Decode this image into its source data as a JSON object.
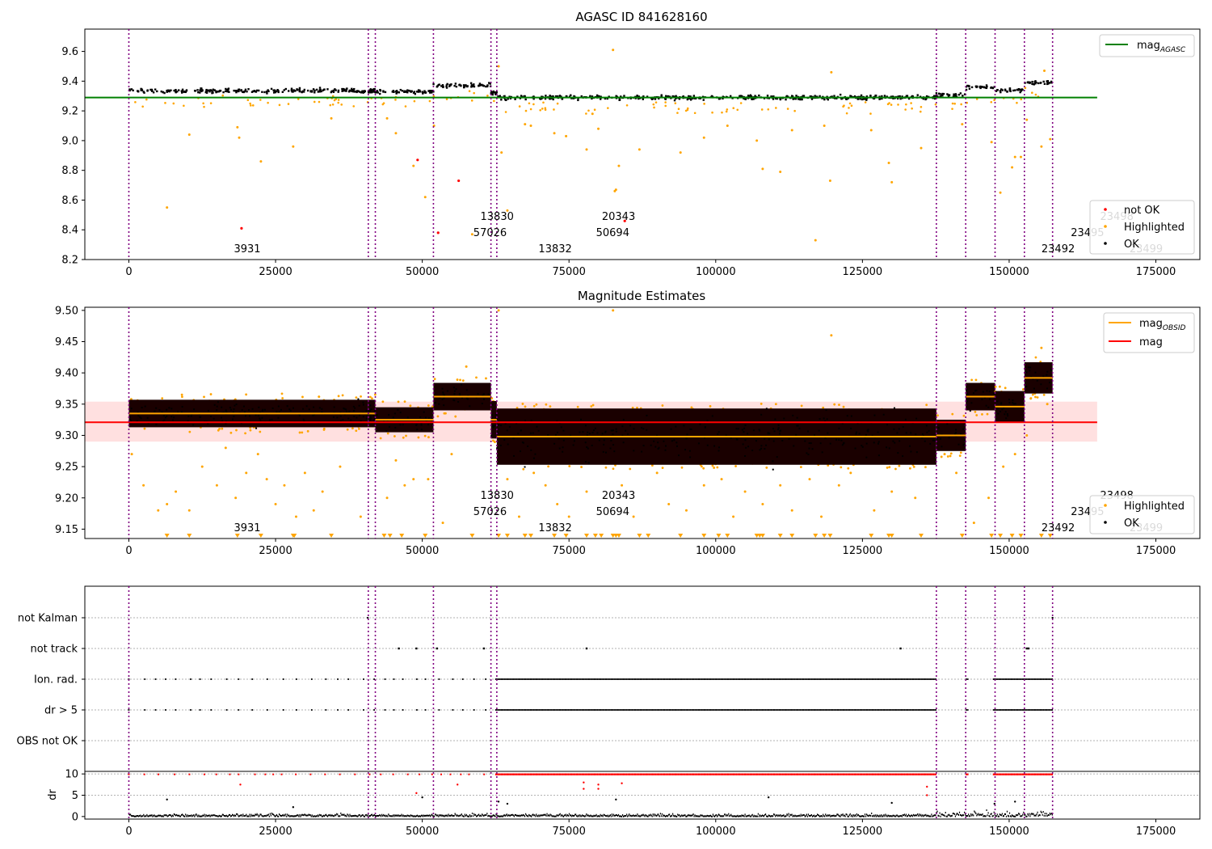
{
  "x_axis": {
    "xlim": [
      -7500,
      182500
    ],
    "ticks": [
      0,
      25000,
      50000,
      75000,
      100000,
      125000,
      150000,
      175000
    ],
    "tick_labels": [
      "0",
      "25000",
      "50000",
      "75000",
      "100000",
      "125000",
      "150000",
      "175000"
    ]
  },
  "observations": [
    {
      "obsid": "3931",
      "start": 0,
      "end": 40800,
      "label_row": 2
    },
    {
      "obsid": "57026",
      "start": 40800,
      "end": 42000,
      "label_row": 1
    },
    {
      "obsid": "13830",
      "start": 42000,
      "end": 51900,
      "label_row": 0
    },
    {
      "obsid": "13832",
      "start": 51900,
      "end": 61700,
      "label_row": 2
    },
    {
      "obsid": "50694",
      "start": 61700,
      "end": 62700,
      "label_row": 1
    },
    {
      "obsid": "20343",
      "start": 62700,
      "end": 137600,
      "label_row": 0
    },
    {
      "obsid": "23492",
      "start": 137600,
      "end": 142600,
      "label_row": 2
    },
    {
      "obsid": "23495",
      "start": 142600,
      "end": 147600,
      "label_row": 1
    },
    {
      "obsid": "23498",
      "start": 147600,
      "end": 152600,
      "label_row": 0
    },
    {
      "obsid": "23499",
      "start": 152600,
      "end": 157400,
      "label_row": 2
    }
  ],
  "chart_data": [
    {
      "type": "scatter",
      "title": "AGASC ID 841628160",
      "xlim": [
        -7500,
        182500
      ],
      "ylim": [
        8.2,
        9.75
      ],
      "yticks": [
        8.2,
        8.4,
        8.6,
        8.8,
        9.0,
        9.2,
        9.4,
        9.6
      ],
      "ytick_labels": [
        "8.2",
        "8.4",
        "8.6",
        "8.8",
        "9.0",
        "9.2",
        "9.4",
        "9.6"
      ],
      "legend_top": {
        "position": "upper right",
        "entries": [
          {
            "label": "mag",
            "subscript": "AGASC",
            "color": "#008000"
          }
        ]
      },
      "legend_bottom": {
        "position": "lower right",
        "entries": [
          {
            "label": "not OK",
            "color": "#ff0000"
          },
          {
            "label": "Highlighted",
            "color": "#ffa500"
          },
          {
            "label": "OK",
            "color": "#000000"
          }
        ]
      },
      "agasc_mag": 9.29,
      "agasc_line_x": [
        -7500,
        165000
      ],
      "ok_band_means": [
        9.335,
        9.335,
        9.33,
        9.37,
        9.32,
        9.29,
        9.305,
        9.36,
        9.34,
        9.39
      ],
      "not_ok_points": [
        [
          19200,
          8.41
        ],
        [
          49200,
          8.87
        ],
        [
          52700,
          8.38
        ],
        [
          56200,
          8.73
        ],
        [
          84500,
          8.46
        ]
      ],
      "highlighted_outliers": [
        [
          6500,
          8.55
        ],
        [
          10300,
          9.04
        ],
        [
          18500,
          9.09
        ],
        [
          18800,
          9.02
        ],
        [
          22500,
          8.86
        ],
        [
          28000,
          8.96
        ],
        [
          34500,
          9.15
        ],
        [
          44000,
          9.15
        ],
        [
          45500,
          9.05
        ],
        [
          48500,
          8.83
        ],
        [
          50500,
          8.62
        ],
        [
          52000,
          9.1
        ],
        [
          58500,
          8.37
        ],
        [
          63000,
          9.5
        ],
        [
          63500,
          8.92
        ],
        [
          64500,
          8.53
        ],
        [
          67500,
          9.11
        ],
        [
          68500,
          9.1
        ],
        [
          72500,
          9.05
        ],
        [
          74500,
          9.03
        ],
        [
          78000,
          8.94
        ],
        [
          79000,
          9.18
        ],
        [
          80000,
          9.08
        ],
        [
          82500,
          9.61
        ],
        [
          82800,
          8.66
        ],
        [
          83000,
          8.67
        ],
        [
          83500,
          8.83
        ],
        [
          87000,
          8.94
        ],
        [
          94000,
          8.92
        ],
        [
          98000,
          9.02
        ],
        [
          102000,
          9.1
        ],
        [
          107000,
          9.0
        ],
        [
          108000,
          8.81
        ],
        [
          111000,
          8.79
        ],
        [
          113000,
          9.07
        ],
        [
          117000,
          8.33
        ],
        [
          118500,
          9.1
        ],
        [
          119500,
          8.73
        ],
        [
          119700,
          9.46
        ],
        [
          126500,
          9.07
        ],
        [
          129500,
          8.85
        ],
        [
          130000,
          8.72
        ],
        [
          135000,
          8.95
        ],
        [
          142000,
          9.11
        ],
        [
          147000,
          8.99
        ],
        [
          148500,
          8.65
        ],
        [
          150500,
          8.82
        ],
        [
          152000,
          8.89
        ],
        [
          155500,
          8.96
        ],
        [
          156000,
          9.47
        ],
        [
          157000,
          9.01
        ],
        [
          151000,
          8.89
        ],
        [
          153000,
          9.14
        ]
      ]
    },
    {
      "type": "scatter",
      "title": "Magnitude Estimates",
      "xlim": [
        -7500,
        182500
      ],
      "ylim": [
        9.135,
        9.505
      ],
      "yticks": [
        9.15,
        9.2,
        9.25,
        9.3,
        9.35,
        9.4,
        9.45,
        9.5
      ],
      "ytick_labels": [
        "9.15",
        "9.20",
        "9.25",
        "9.30",
        "9.35",
        "9.40",
        "9.45",
        "9.50"
      ],
      "legend_top": {
        "position": "upper right",
        "entries": [
          {
            "label": "mag",
            "subscript": "OBSID",
            "color": "#ffa500"
          },
          {
            "label": "mag",
            "subscript": "",
            "color": "#ff0000"
          }
        ]
      },
      "legend_bottom": {
        "position": "lower right",
        "entries": [
          {
            "label": "Highlighted",
            "color": "#ffa500"
          },
          {
            "label": "OK",
            "color": "#000000"
          }
        ]
      },
      "mag": 9.321,
      "mag_band": [
        9.29,
        9.354
      ],
      "mag_line_x": [
        -7500,
        165000
      ],
      "mag_obsid": [
        9.335,
        9.335,
        9.325,
        9.362,
        9.325,
        9.298,
        9.3,
        9.362,
        9.346,
        9.392
      ],
      "obs_spread": [
        0.022,
        0.022,
        0.02,
        0.022,
        0.03,
        0.045,
        0.025,
        0.022,
        0.025,
        0.025
      ],
      "highlighted_outliers": [
        [
          500,
          9.27
        ],
        [
          2500,
          9.22
        ],
        [
          5000,
          9.18
        ],
        [
          6500,
          9.19
        ],
        [
          8000,
          9.21
        ],
        [
          10300,
          9.18
        ],
        [
          12500,
          9.25
        ],
        [
          15000,
          9.22
        ],
        [
          16500,
          9.28
        ],
        [
          18200,
          9.2
        ],
        [
          20000,
          9.24
        ],
        [
          22000,
          9.27
        ],
        [
          23500,
          9.23
        ],
        [
          25000,
          9.19
        ],
        [
          26500,
          9.22
        ],
        [
          28500,
          9.17
        ],
        [
          30000,
          9.24
        ],
        [
          31500,
          9.18
        ],
        [
          33000,
          9.21
        ],
        [
          36000,
          9.25
        ],
        [
          39500,
          9.17
        ],
        [
          44000,
          9.2
        ],
        [
          45500,
          9.26
        ],
        [
          47000,
          9.22
        ],
        [
          48500,
          9.23
        ],
        [
          51000,
          9.23
        ],
        [
          53500,
          9.16
        ],
        [
          55000,
          9.27
        ],
        [
          57500,
          9.41
        ],
        [
          63000,
          9.5
        ],
        [
          64500,
          9.23
        ],
        [
          66500,
          9.17
        ],
        [
          69000,
          9.24
        ],
        [
          71000,
          9.22
        ],
        [
          73000,
          9.19
        ],
        [
          75000,
          9.17
        ],
        [
          78000,
          9.21
        ],
        [
          82500,
          9.5
        ],
        [
          84000,
          9.22
        ],
        [
          86000,
          9.17
        ],
        [
          90000,
          9.24
        ],
        [
          92000,
          9.19
        ],
        [
          95000,
          9.18
        ],
        [
          98000,
          9.22
        ],
        [
          101000,
          9.23
        ],
        [
          103000,
          9.17
        ],
        [
          105000,
          9.21
        ],
        [
          108000,
          9.19
        ],
        [
          111000,
          9.22
        ],
        [
          113000,
          9.18
        ],
        [
          116000,
          9.23
        ],
        [
          118000,
          9.17
        ],
        [
          119700,
          9.46
        ],
        [
          121000,
          9.22
        ],
        [
          123000,
          9.24
        ],
        [
          127000,
          9.18
        ],
        [
          130000,
          9.21
        ],
        [
          134000,
          9.2
        ],
        [
          139000,
          9.27
        ],
        [
          141000,
          9.24
        ],
        [
          144000,
          9.16
        ],
        [
          146500,
          9.2
        ],
        [
          149000,
          9.25
        ],
        [
          151000,
          9.27
        ],
        [
          153000,
          9.3
        ],
        [
          155500,
          9.44
        ],
        [
          156500,
          9.35
        ]
      ],
      "lower_clip_markers_x": [
        6500,
        10300,
        18500,
        22500,
        28000,
        28200,
        34500,
        43500,
        44500,
        46500,
        50500,
        58500,
        63000,
        64500,
        67500,
        68500,
        72500,
        74500,
        78000,
        79500,
        80500,
        82500,
        83000,
        83500,
        87000,
        88500,
        94000,
        98000,
        100500,
        102000,
        107000,
        107500,
        108000,
        111000,
        113000,
        117000,
        118500,
        119500,
        126500,
        129500,
        130000,
        135000,
        142000,
        147000,
        148500,
        150500,
        152000,
        155500,
        157000
      ]
    },
    {
      "type": "scatter",
      "title": "",
      "xlim": [
        -7500,
        182500
      ],
      "flag_rows": [
        "not Kalman",
        "not track",
        "Ion. rad.",
        "dr > 5",
        "OBS not OK"
      ],
      "ylabel": "dr",
      "ylim": [
        -0.6,
        10.6
      ],
      "yticks": [
        0,
        5,
        10
      ],
      "ytick_labels": [
        "0",
        "5",
        "10"
      ],
      "not_kalman_points": [
        40700,
        157400
      ],
      "not_track_points": [
        46000,
        49000,
        52500,
        60500,
        78000,
        131500,
        153000,
        153300
      ],
      "flag_dense_ranges": [
        [
          62500,
          157400
        ]
      ],
      "flag_gap_ranges": [
        [
          137600,
          142600
        ],
        [
          143000,
          147200
        ]
      ],
      "dr_outliers": [
        [
          19000,
          7.5
        ],
        [
          6500,
          4.0
        ],
        [
          28000,
          2.2
        ],
        [
          49000,
          5.5
        ],
        [
          50000,
          4.5
        ],
        [
          56000,
          7.5
        ],
        [
          63000,
          3.5
        ],
        [
          64500,
          3.0
        ],
        [
          77500,
          6.5
        ],
        [
          77500,
          8.0
        ],
        [
          80000,
          7.5
        ],
        [
          80000,
          6.5
        ],
        [
          84000,
          7.8
        ],
        [
          83000,
          4.0
        ],
        [
          109000,
          4.5
        ],
        [
          130000,
          3.2
        ],
        [
          136000,
          7.0
        ],
        [
          136000,
          5.0
        ],
        [
          151000,
          3.5
        ],
        [
          147500,
          3.0
        ]
      ]
    }
  ]
}
